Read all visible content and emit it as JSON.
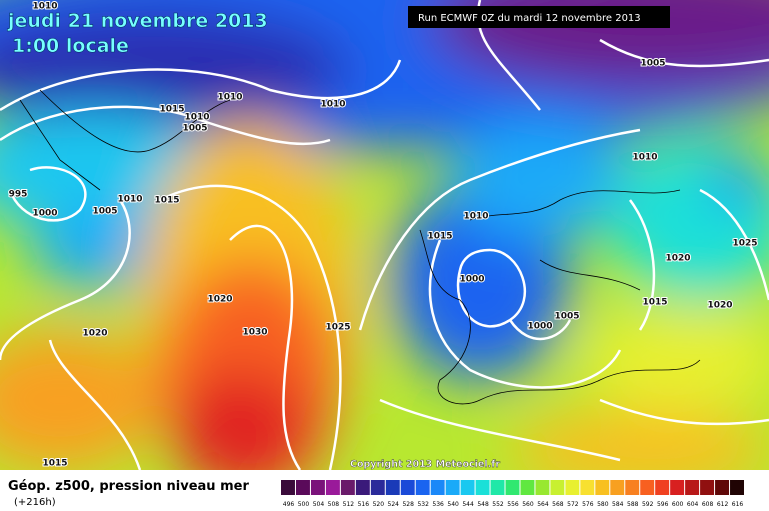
{
  "header": {
    "date": "jeudi 21 novembre 2013",
    "time": "1:00 locale",
    "run": "Run ECMWF 0Z du mardi 12 novembre 2013"
  },
  "copyright": "Copyright 2013 Meteociel.fr",
  "footer": {
    "field": "Géop. z500, pression niveau mer",
    "lead": "(+216h)"
  },
  "scale": {
    "labels": [
      "496",
      "500",
      "504",
      "508",
      "512",
      "516",
      "520",
      "524",
      "528",
      "532",
      "536",
      "540",
      "544",
      "548",
      "552",
      "556",
      "560",
      "564",
      "568",
      "572",
      "576",
      "580",
      "584",
      "588",
      "592",
      "596",
      "600",
      "604",
      "608",
      "612",
      "616"
    ],
    "colors": [
      "#3a0a3a",
      "#5a0a5a",
      "#7a127a",
      "#9a1a9a",
      "#6a1a6a",
      "#3a1a7a",
      "#2a2a9a",
      "#1a3ab8",
      "#1a4ad8",
      "#1a64f0",
      "#1a88f8",
      "#1aaaf8",
      "#1ac8f0",
      "#1ae0d8",
      "#20e8a8",
      "#30e870",
      "#60e840",
      "#98e830",
      "#c8f030",
      "#e8f030",
      "#f8e030",
      "#f8c020",
      "#f8a020",
      "#f88020",
      "#f86020",
      "#f04020",
      "#d82020",
      "#b81818",
      "#901010",
      "#600808",
      "#200404"
    ]
  },
  "isobars": [
    "1010",
    "1010",
    "1015",
    "1010",
    "1005",
    "1010",
    "1005",
    "1010",
    "995",
    "1000",
    "1005",
    "1010",
    "1015",
    "1010",
    "1015",
    "1025",
    "1020",
    "1000",
    "1020",
    "1015",
    "1020",
    "1005",
    "1000",
    "1030",
    "1025",
    "1020",
    "1015"
  ]
}
